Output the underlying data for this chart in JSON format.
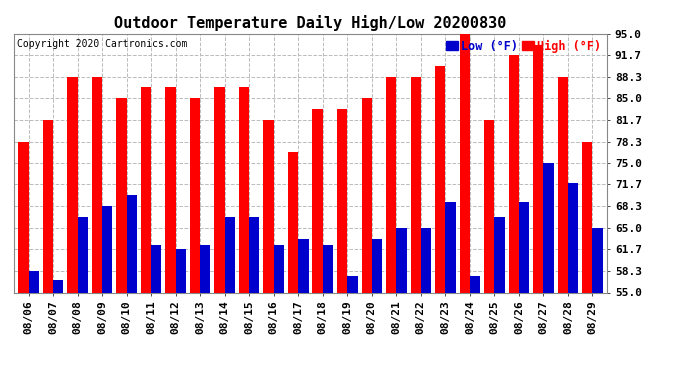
{
  "title": "Outdoor Temperature Daily High/Low 20200830",
  "copyright": "Copyright 2020 Cartronics.com",
  "legend_low": "Low (°F)",
  "legend_high": "High (°F)",
  "dates": [
    "08/06",
    "08/07",
    "08/08",
    "08/09",
    "08/10",
    "08/11",
    "08/12",
    "08/13",
    "08/14",
    "08/15",
    "08/16",
    "08/17",
    "08/18",
    "08/19",
    "08/20",
    "08/21",
    "08/22",
    "08/23",
    "08/24",
    "08/25",
    "08/26",
    "08/27",
    "08/28",
    "08/29"
  ],
  "highs": [
    78.3,
    81.7,
    88.3,
    88.3,
    85.0,
    86.7,
    86.7,
    85.0,
    86.7,
    86.7,
    81.7,
    76.7,
    83.3,
    83.3,
    85.0,
    88.3,
    88.3,
    90.0,
    95.0,
    81.7,
    91.7,
    93.3,
    88.3,
    78.3
  ],
  "lows": [
    58.3,
    57.0,
    66.7,
    68.3,
    70.0,
    62.3,
    61.7,
    62.3,
    66.7,
    66.7,
    62.3,
    63.3,
    62.3,
    57.5,
    63.3,
    65.0,
    65.0,
    69.0,
    57.5,
    66.7,
    69.0,
    75.0,
    72.0,
    65.0
  ],
  "ylim_min": 55.0,
  "ylim_max": 95.0,
  "yticks": [
    55.0,
    58.3,
    61.7,
    65.0,
    68.3,
    71.7,
    75.0,
    78.3,
    81.7,
    85.0,
    88.3,
    91.7,
    95.0
  ],
  "bar_color_high": "#ff0000",
  "bar_color_low": "#0000cc",
  "bg_color": "#ffffff",
  "grid_color": "#bbbbbb",
  "title_fontsize": 11,
  "tick_fontsize": 8,
  "bar_width": 0.42,
  "figwidth": 6.9,
  "figheight": 3.75,
  "dpi": 100
}
